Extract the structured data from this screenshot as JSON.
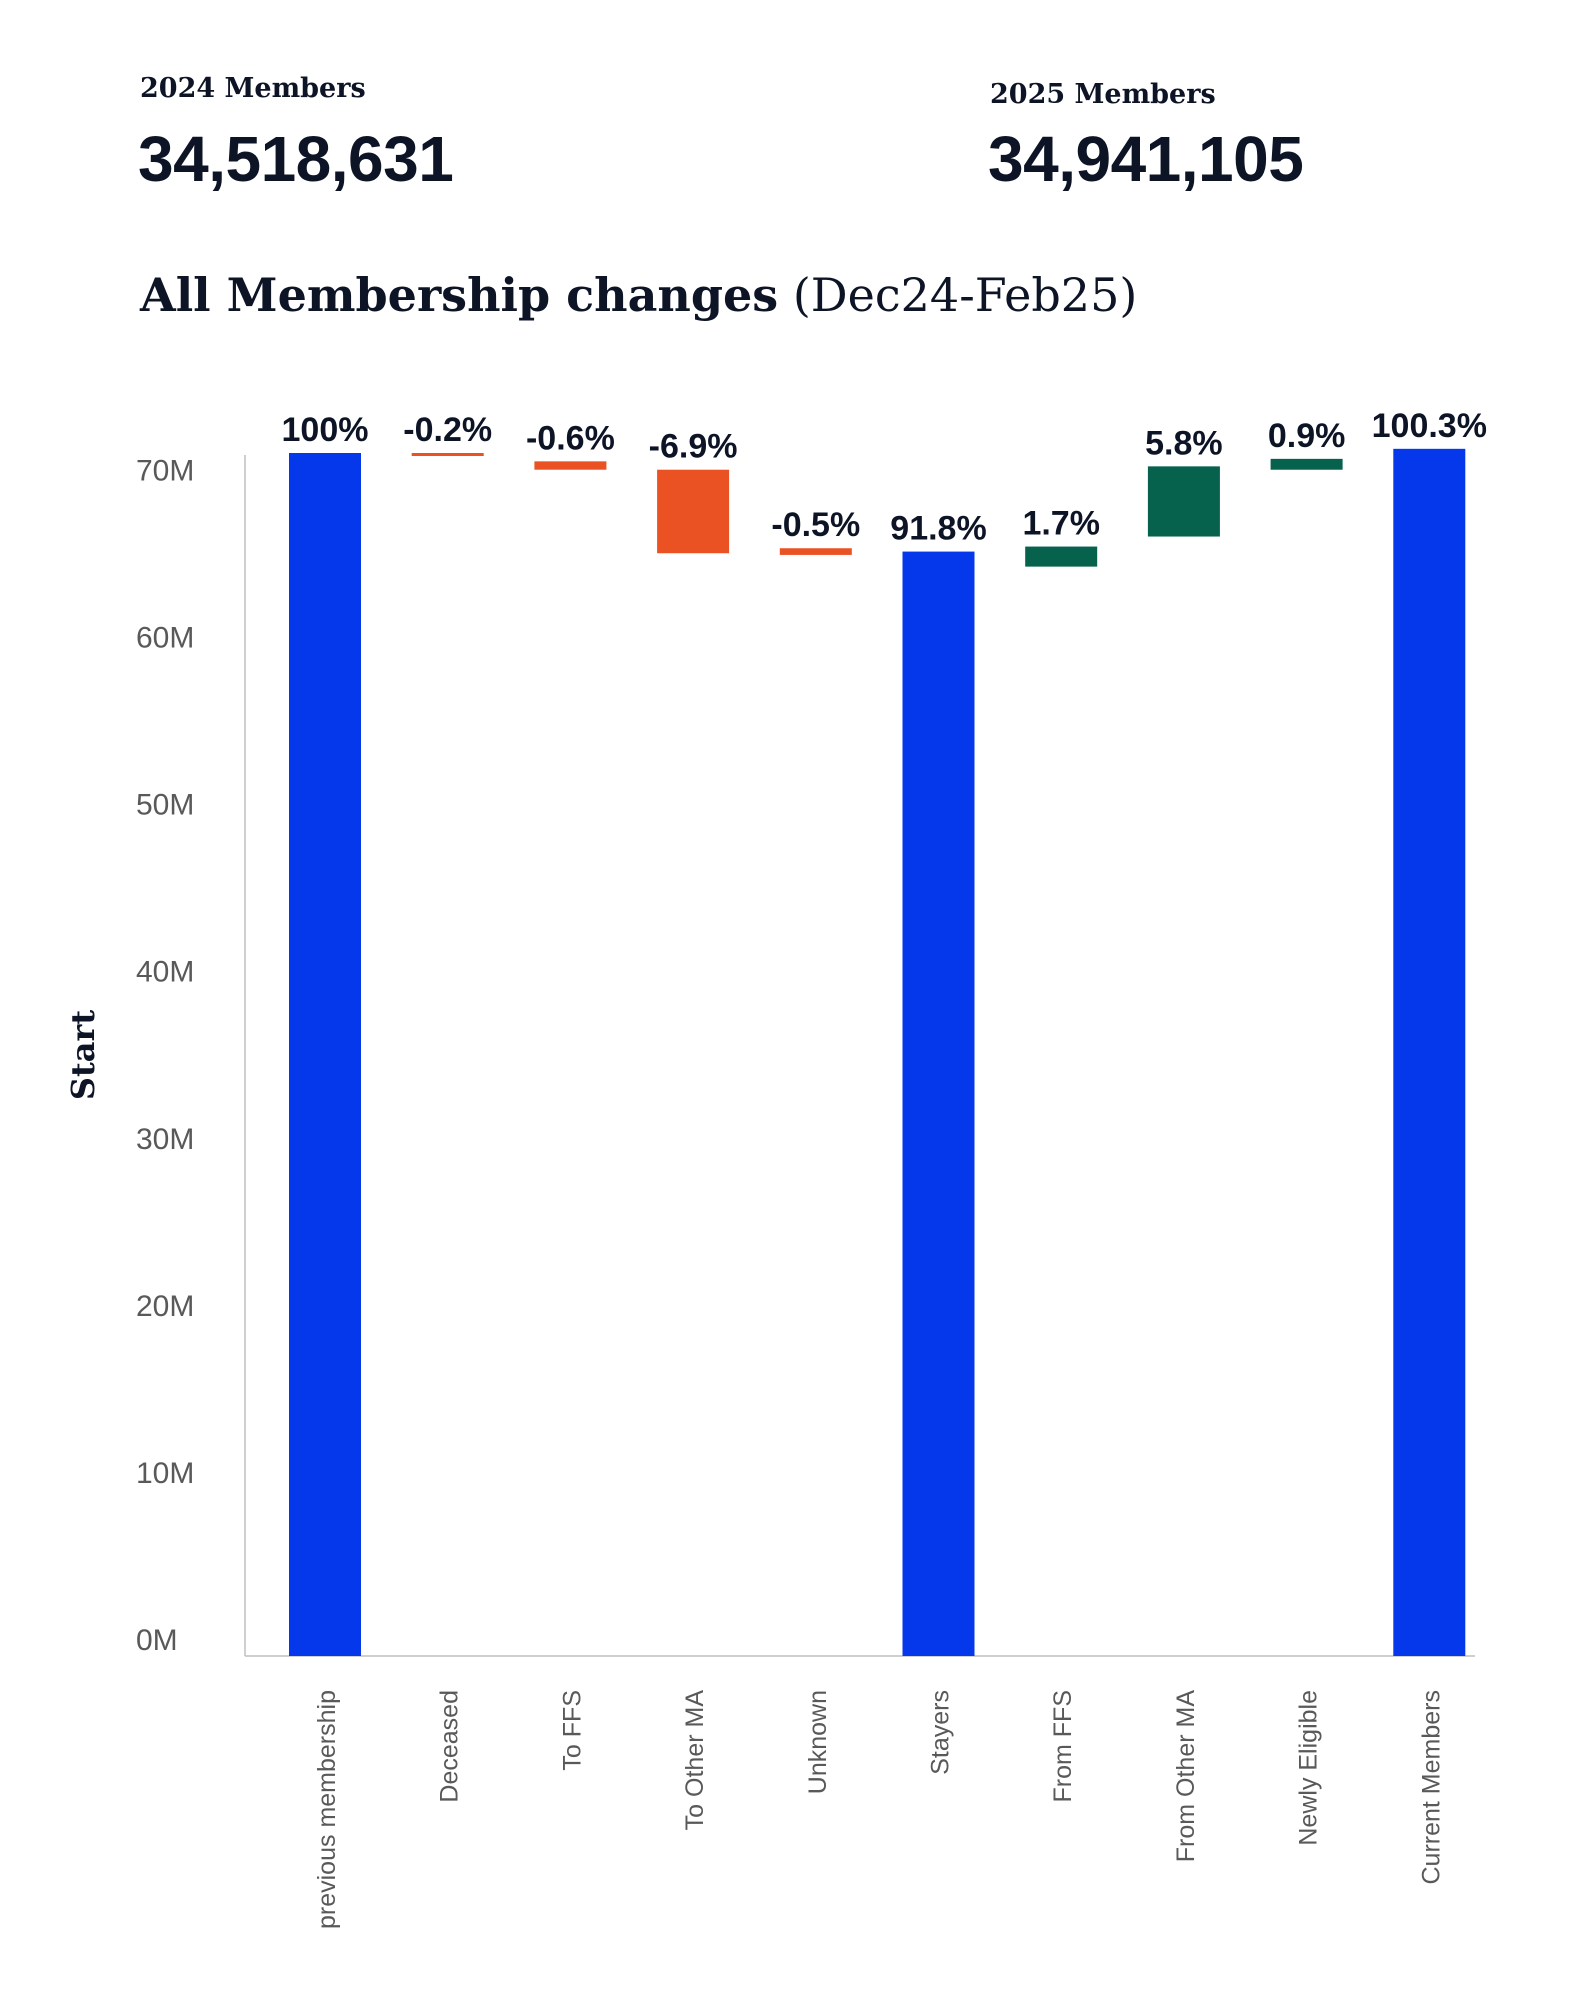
{
  "kpis": {
    "prev": {
      "label": "2024 Members",
      "value": "34,518,631"
    },
    "curr": {
      "label": "2025 Members",
      "value": "34,941,105"
    }
  },
  "chart_title": {
    "main": "All Membership changes",
    "range": "(Dec24-Feb25)"
  },
  "colors": {
    "total": "#0538EB",
    "decrease": "#EA5224",
    "increase": "#06614D",
    "text": "#0c1426",
    "axis_text": "#595959",
    "axis_line": "#bfbfbf"
  },
  "chart_data": {
    "type": "bar",
    "subtype": "waterfall",
    "ylabel": "Start",
    "ylim": [
      0,
      72000000
    ],
    "yticks": [
      0,
      10000000,
      20000000,
      30000000,
      40000000,
      50000000,
      60000000,
      70000000
    ],
    "ytick_labels": [
      "0M",
      "10M",
      "20M",
      "30M",
      "40M",
      "50M",
      "60M",
      "70M"
    ],
    "grid": false,
    "legend": "none",
    "categories": [
      "previous membership",
      "Deceased",
      "To FFS",
      "To Other MA",
      "Unknown",
      "Stayers",
      "From FFS",
      "From Other MA",
      "Newly Eligible",
      "Current Members"
    ],
    "bars": [
      {
        "kind": "total",
        "start": 0,
        "end": 72000000,
        "label": "100%"
      },
      {
        "kind": "decrease",
        "start": 72000000,
        "end": 71850000,
        "label": "-0.2%"
      },
      {
        "kind": "decrease",
        "start": 71500000,
        "end": 71000000,
        "label": "-0.6%"
      },
      {
        "kind": "decrease",
        "start": 71000000,
        "end": 66000000,
        "label": "-6.9%"
      },
      {
        "kind": "decrease",
        "start": 66300000,
        "end": 65900000,
        "label": "-0.5%"
      },
      {
        "kind": "total",
        "start": 0,
        "end": 66100000,
        "label": "91.8%"
      },
      {
        "kind": "increase",
        "start": 65200000,
        "end": 66400000,
        "label": "1.7%"
      },
      {
        "kind": "increase",
        "start": 67000000,
        "end": 71200000,
        "label": "5.8%"
      },
      {
        "kind": "increase",
        "start": 71000000,
        "end": 71650000,
        "label": "0.9%"
      },
      {
        "kind": "total",
        "start": 0,
        "end": 72250000,
        "label": "100.3%"
      }
    ]
  }
}
